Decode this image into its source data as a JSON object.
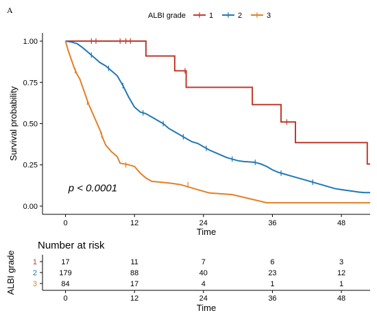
{
  "panel_label": "A",
  "chart_data": [
    {
      "type": "line",
      "subtype": "kaplan-meier",
      "title": "",
      "xlabel": "Time",
      "ylabel": "Survival probability",
      "xlim": [
        -4,
        53
      ],
      "ylim": [
        -0.05,
        1.05
      ],
      "xticks": [
        0,
        12,
        24,
        36,
        48
      ],
      "yticks": [
        0.0,
        0.25,
        0.5,
        0.75,
        1.0
      ],
      "ytick_labels": [
        "0.00",
        "0.25",
        "0.50",
        "0.75",
        "1.00"
      ],
      "grid": false,
      "legend": {
        "title": "ALBI grade",
        "placement": "top"
      },
      "annotation": "p < 0.0001",
      "series": [
        {
          "name": "1",
          "color": "#c0392b",
          "points": [
            [
              0,
              1.0
            ],
            [
              14,
              1.0
            ],
            [
              14,
              0.91
            ],
            [
              19,
              0.91
            ],
            [
              19,
              0.82
            ],
            [
              21,
              0.82
            ],
            [
              21,
              0.72
            ],
            [
              32.5,
              0.72
            ],
            [
              32.5,
              0.615
            ],
            [
              37.5,
              0.615
            ],
            [
              37.5,
              0.51
            ],
            [
              40,
              0.51
            ],
            [
              40,
              0.385
            ],
            [
              52.5,
              0.385
            ],
            [
              52.5,
              0.255
            ],
            [
              53,
              0.255
            ]
          ],
          "censor": [
            [
              4.5,
              1.0
            ],
            [
              5.3,
              1.0
            ],
            [
              9.5,
              1.0
            ],
            [
              10.5,
              1.0
            ],
            [
              11.3,
              1.0
            ],
            [
              20.8,
              0.82
            ],
            [
              38.5,
              0.51
            ]
          ]
        },
        {
          "name": "2",
          "color": "#1f77b4",
          "points": [
            [
              0,
              1.0
            ],
            [
              1,
              0.995
            ],
            [
              2,
              0.985
            ],
            [
              3,
              0.96
            ],
            [
              4,
              0.93
            ],
            [
              5,
              0.9
            ],
            [
              6,
              0.87
            ],
            [
              7,
              0.85
            ],
            [
              8,
              0.82
            ],
            [
              9,
              0.79
            ],
            [
              10,
              0.73
            ],
            [
              11,
              0.66
            ],
            [
              12,
              0.6
            ],
            [
              13,
              0.57
            ],
            [
              14,
              0.56
            ],
            [
              15,
              0.54
            ],
            [
              16,
              0.52
            ],
            [
              17,
              0.5
            ],
            [
              18,
              0.47
            ],
            [
              19,
              0.45
            ],
            [
              20,
              0.43
            ],
            [
              21,
              0.41
            ],
            [
              22,
              0.39
            ],
            [
              23,
              0.38
            ],
            [
              24,
              0.36
            ],
            [
              25,
              0.34
            ],
            [
              26,
              0.325
            ],
            [
              27,
              0.31
            ],
            [
              28,
              0.295
            ],
            [
              29,
              0.285
            ],
            [
              30,
              0.275
            ],
            [
              31,
              0.27
            ],
            [
              32,
              0.268
            ],
            [
              33,
              0.265
            ],
            [
              34,
              0.255
            ],
            [
              35,
              0.24
            ],
            [
              36,
              0.22
            ],
            [
              37,
              0.205
            ],
            [
              38,
              0.195
            ],
            [
              39,
              0.185
            ],
            [
              40,
              0.175
            ],
            [
              41,
              0.165
            ],
            [
              42,
              0.155
            ],
            [
              43,
              0.145
            ],
            [
              44,
              0.135
            ],
            [
              45,
              0.125
            ],
            [
              46,
              0.115
            ],
            [
              47,
              0.105
            ],
            [
              48,
              0.1
            ],
            [
              49,
              0.095
            ],
            [
              50,
              0.09
            ],
            [
              51,
              0.085
            ],
            [
              52,
              0.082
            ],
            [
              53,
              0.082
            ]
          ],
          "censor": [
            [
              4.5,
              0.915
            ],
            [
              7.5,
              0.835
            ],
            [
              10,
              0.73
            ],
            [
              13.5,
              0.565
            ],
            [
              17,
              0.5
            ],
            [
              20.5,
              0.42
            ],
            [
              24.5,
              0.35
            ],
            [
              29,
              0.285
            ],
            [
              33,
              0.265
            ],
            [
              37.5,
              0.2
            ],
            [
              43,
              0.145
            ]
          ]
        },
        {
          "name": "3",
          "color": "#e67e22",
          "points": [
            [
              0,
              1.0
            ],
            [
              0.5,
              0.94
            ],
            [
              1,
              0.89
            ],
            [
              1.5,
              0.84
            ],
            [
              2,
              0.8
            ],
            [
              2.5,
              0.77
            ],
            [
              3,
              0.72
            ],
            [
              3.5,
              0.67
            ],
            [
              4,
              0.62
            ],
            [
              4.5,
              0.58
            ],
            [
              5,
              0.54
            ],
            [
              5.5,
              0.5
            ],
            [
              6,
              0.46
            ],
            [
              6.5,
              0.41
            ],
            [
              7,
              0.37
            ],
            [
              8,
              0.33
            ],
            [
              9,
              0.3
            ],
            [
              9.5,
              0.26
            ],
            [
              11,
              0.25
            ],
            [
              12,
              0.24
            ],
            [
              13,
              0.2
            ],
            [
              14,
              0.17
            ],
            [
              15,
              0.15
            ],
            [
              18,
              0.14
            ],
            [
              20,
              0.13
            ],
            [
              23,
              0.1
            ],
            [
              25,
              0.08
            ],
            [
              29,
              0.07
            ],
            [
              32,
              0.045
            ],
            [
              35,
              0.02
            ],
            [
              48,
              0.02
            ],
            [
              53,
              0.02
            ]
          ],
          "censor": [
            [
              1.7,
              0.82
            ],
            [
              3.8,
              0.63
            ],
            [
              6.3,
              0.43
            ],
            [
              10.5,
              0.25
            ],
            [
              21.3,
              0.13
            ]
          ]
        }
      ]
    },
    {
      "type": "table",
      "title": "Number at risk",
      "xlabel": "Time",
      "ylabel": "ALBI grade",
      "xticks": [
        0,
        12,
        24,
        36,
        48
      ],
      "rows": [
        {
          "name": "1",
          "color": "#c0392b",
          "values": [
            17,
            11,
            7,
            6,
            3
          ]
        },
        {
          "name": "2",
          "color": "#1f77b4",
          "values": [
            179,
            88,
            40,
            23,
            12
          ]
        },
        {
          "name": "3",
          "color": "#e67e22",
          "values": [
            84,
            17,
            4,
            1,
            1
          ]
        }
      ]
    }
  ]
}
